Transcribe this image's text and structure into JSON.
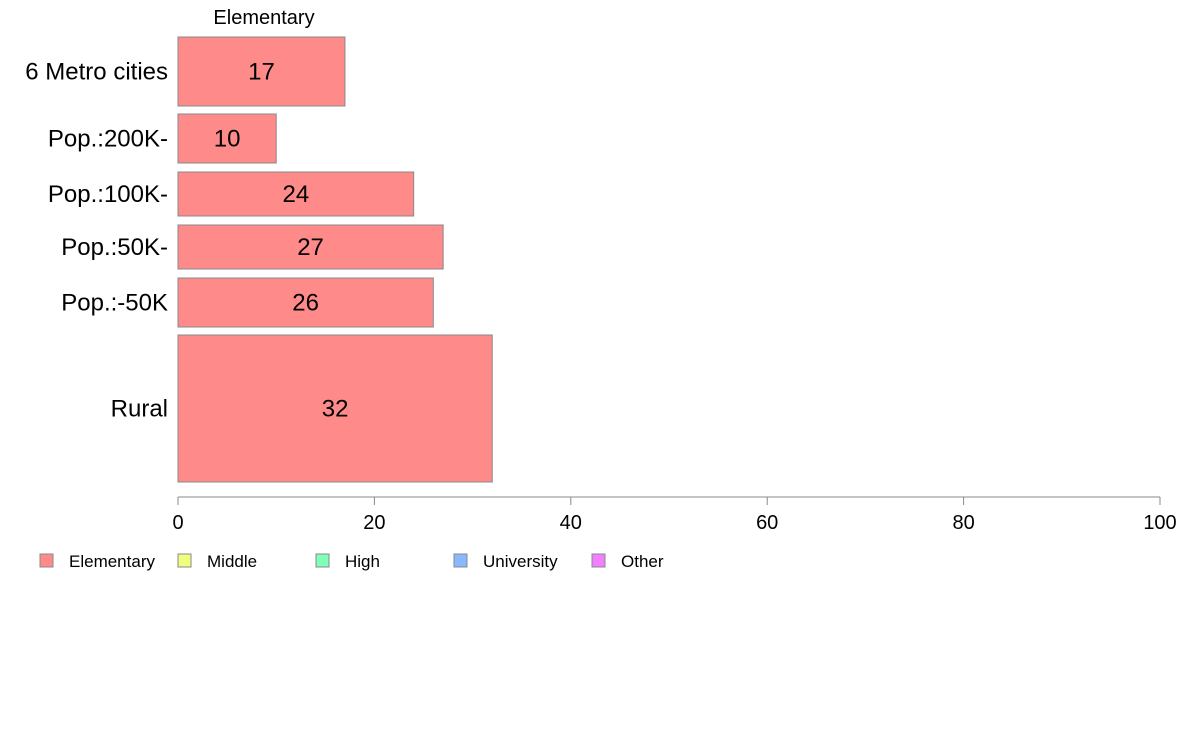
{
  "chart_data": {
    "type": "bar",
    "orientation": "horizontal",
    "column_header": "Elementary",
    "categories": [
      "6 Metro cities",
      "Pop.:200K-",
      "Pop.:100K-",
      "Pop.:50K-",
      "Pop.:-50K",
      "Rural"
    ],
    "series": [
      {
        "name": "Elementary",
        "values": [
          17,
          10,
          24,
          27,
          26,
          32
        ],
        "color": "#ff8a8a"
      }
    ],
    "xlim": [
      0,
      100
    ],
    "xticks": [
      0,
      20,
      40,
      60,
      80,
      100
    ],
    "legend": {
      "placement": "bottom-left",
      "entries": [
        {
          "label": "Elementary",
          "color": "#ff8a8a"
        },
        {
          "label": "Middle",
          "color": "#f0ff80"
        },
        {
          "label": "High",
          "color": "#80ffb8"
        },
        {
          "label": "University",
          "color": "#88b8ff"
        },
        {
          "label": "Other",
          "color": "#f080ff"
        }
      ]
    },
    "grid": false
  }
}
